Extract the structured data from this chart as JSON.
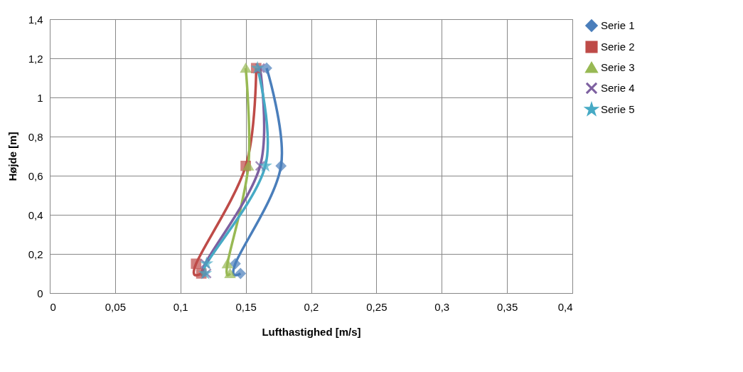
{
  "chart_data": {
    "type": "line",
    "xlabel": "Lufthastighed [m/s]",
    "ylabel": "Højde [m]",
    "xlim": [
      0,
      0.4
    ],
    "xticks": [
      {
        "value": 0,
        "label": "0"
      },
      {
        "value": 0.05,
        "label": "0,05"
      },
      {
        "value": 0.1,
        "label": "0,1"
      },
      {
        "value": 0.15,
        "label": "0,15"
      },
      {
        "value": 0.2,
        "label": "0,2"
      },
      {
        "value": 0.25,
        "label": "0,25"
      },
      {
        "value": 0.3,
        "label": "0,3"
      },
      {
        "value": 0.35,
        "label": "0,35"
      },
      {
        "value": 0.4,
        "label": "0,4"
      }
    ],
    "ylim": [
      0,
      1.4
    ],
    "yticks": [
      {
        "value": 0,
        "label": "0"
      },
      {
        "value": 0.2,
        "label": "0,2"
      },
      {
        "value": 0.4,
        "label": "0,4"
      },
      {
        "value": 0.6,
        "label": "0,6"
      },
      {
        "value": 0.8,
        "label": "0,8"
      },
      {
        "value": 1,
        "label": "1"
      },
      {
        "value": 1.2,
        "label": "1,2"
      },
      {
        "value": 1.4,
        "label": "1,4"
      }
    ],
    "grid": true,
    "legend": "right",
    "line_style": "solid",
    "series": [
      {
        "name": "Serie 1",
        "color": "#4a7ebb",
        "marker": "diamond",
        "x": [
          0.166,
          0.177,
          0.142,
          0.146
        ],
        "values": [
          1.15,
          0.65,
          0.15,
          0.1
        ]
      },
      {
        "name": "Serie 2",
        "color": "#be4b48",
        "marker": "square",
        "x": [
          0.158,
          0.15,
          0.112,
          0.116
        ],
        "values": [
          1.15,
          0.65,
          0.15,
          0.1
        ]
      },
      {
        "name": "Serie 3",
        "color": "#98b954",
        "marker": "triangle",
        "x": [
          0.15,
          0.152,
          0.136,
          0.138
        ],
        "values": [
          1.15,
          0.65,
          0.15,
          0.1
        ]
      },
      {
        "name": "Serie 4",
        "color": "#7d60a0",
        "marker": "cross",
        "x": [
          0.161,
          0.161,
          0.119,
          0.12
        ],
        "values": [
          1.15,
          0.65,
          0.15,
          0.1
        ]
      },
      {
        "name": "Serie 5",
        "color": "#46aac5",
        "marker": "star",
        "x": [
          0.159,
          0.165,
          0.12,
          0.119
        ],
        "values": [
          1.15,
          0.65,
          0.15,
          0.1
        ]
      }
    ]
  }
}
